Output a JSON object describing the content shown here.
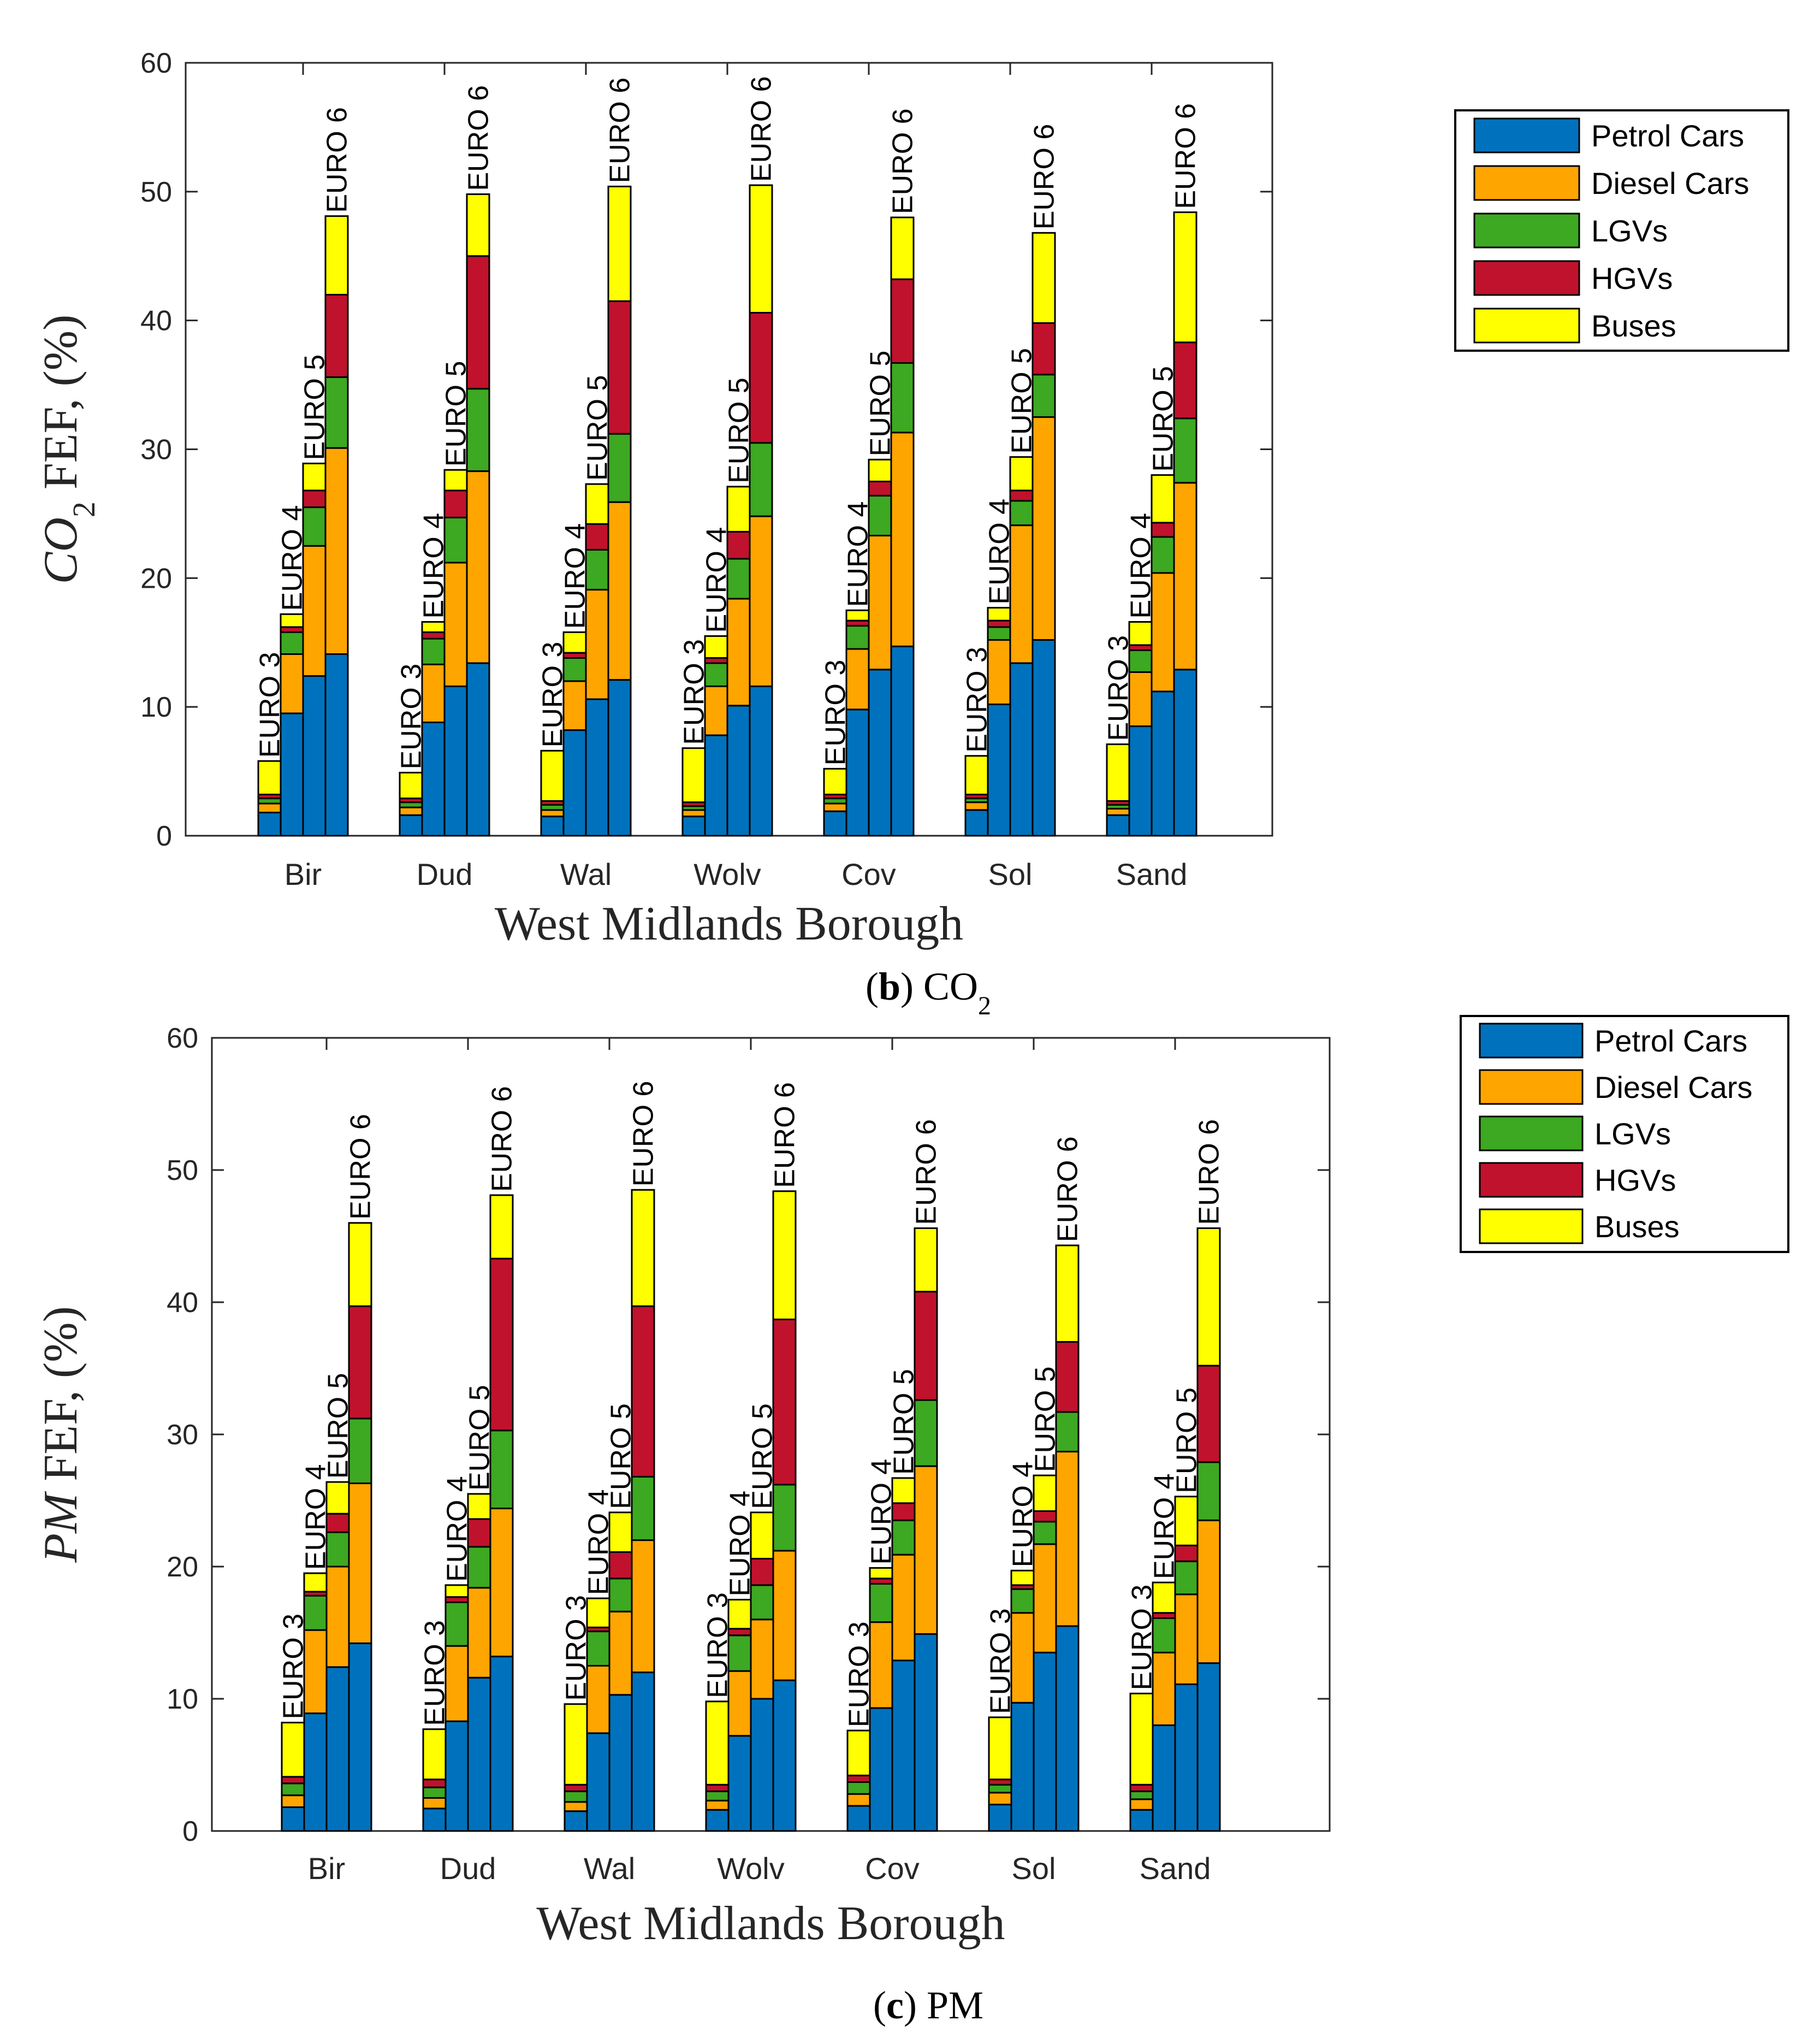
{
  "panels": [
    {
      "id": "co2",
      "ylabel_main": "CO",
      "ylabel_sub": "2",
      "ylabel_rest": " FEF, (%)",
      "xlabel": "West Midlands Borough",
      "caption_letter": "b",
      "caption_text": " CO",
      "caption_sub": "2"
    },
    {
      "id": "pm",
      "ylabel_main": "PM",
      "ylabel_sub": "",
      "ylabel_rest": " FEF, (%)",
      "xlabel": "West Midlands Borough",
      "caption_letter": "c",
      "caption_text": " PM",
      "caption_sub": ""
    }
  ],
  "chart_data": [
    {
      "type": "bar",
      "stacked": true,
      "title": "(b) CO2",
      "ylabel": "CO2 FEF, (%)",
      "xlabel": "West Midlands Borough",
      "ylim": [
        0,
        60
      ],
      "yticks": [
        0,
        10,
        20,
        30,
        40,
        50,
        60
      ],
      "categories": [
        "Bir",
        "Dud",
        "Wal",
        "Wolv",
        "Cov",
        "Sol",
        "Sand"
      ],
      "standards": [
        "EURO 3",
        "EURO 4",
        "EURO 5",
        "EURO 6"
      ],
      "legend": {
        "position": "outside right, top",
        "entries": [
          "Petrol Cars",
          "Diesel Cars",
          "LGVs",
          "HGVs",
          "Buses"
        ]
      },
      "series": [
        {
          "name": "Petrol Cars",
          "color": "#0072BD",
          "values": [
            [
              1.8,
              9.5,
              12.4,
              14.1
            ],
            [
              1.6,
              8.8,
              11.6,
              13.4
            ],
            [
              1.5,
              8.2,
              10.6,
              12.1
            ],
            [
              1.5,
              7.8,
              10.1,
              11.6
            ],
            [
              1.9,
              9.8,
              12.9,
              14.7
            ],
            [
              2.0,
              10.2,
              13.4,
              15.2
            ],
            [
              1.6,
              8.5,
              11.2,
              12.9
            ]
          ]
        },
        {
          "name": "Diesel Cars",
          "color": "#FFA500",
          "values": [
            [
              0.7,
              4.6,
              10.1,
              16.0
            ],
            [
              0.6,
              4.5,
              9.6,
              14.9
            ],
            [
              0.5,
              3.8,
              8.5,
              13.8
            ],
            [
              0.5,
              3.8,
              8.3,
              13.2
            ],
            [
              0.6,
              4.7,
              10.4,
              16.6
            ],
            [
              0.6,
              5.0,
              10.7,
              17.3
            ],
            [
              0.5,
              4.2,
              9.2,
              14.5
            ]
          ]
        },
        {
          "name": "LGVs",
          "color": "#3DA822",
          "values": [
            [
              0.4,
              1.7,
              3.0,
              5.5
            ],
            [
              0.4,
              2.0,
              3.5,
              6.4
            ],
            [
              0.4,
              1.8,
              3.1,
              5.3
            ],
            [
              0.3,
              1.8,
              3.1,
              5.7
            ],
            [
              0.4,
              1.8,
              3.1,
              5.4
            ],
            [
              0.3,
              1.0,
              1.9,
              3.3
            ],
            [
              0.3,
              1.7,
              2.8,
              5.0
            ]
          ]
        },
        {
          "name": "HGVs",
          "color": "#C0122C",
          "values": [
            [
              0.3,
              0.4,
              1.3,
              6.4
            ],
            [
              0.3,
              0.5,
              2.1,
              10.3
            ],
            [
              0.3,
              0.4,
              2.0,
              10.3
            ],
            [
              0.3,
              0.4,
              2.1,
              10.1
            ],
            [
              0.3,
              0.4,
              1.1,
              6.5
            ],
            [
              0.3,
              0.5,
              0.8,
              4.0
            ],
            [
              0.3,
              0.4,
              1.1,
              5.9
            ]
          ]
        },
        {
          "name": "Buses",
          "color": "#FFFF00",
          "values": [
            [
              2.6,
              1.0,
              2.1,
              6.1
            ],
            [
              2.0,
              0.8,
              1.6,
              4.8
            ],
            [
              3.9,
              1.6,
              3.1,
              8.9
            ],
            [
              4.2,
              1.7,
              3.5,
              9.9
            ],
            [
              2.0,
              0.8,
              1.7,
              4.8
            ],
            [
              3.0,
              1.0,
              2.6,
              7.0
            ],
            [
              4.4,
              1.8,
              3.7,
              10.1
            ]
          ]
        }
      ]
    },
    {
      "type": "bar",
      "stacked": true,
      "title": "(c) PM",
      "ylabel": "PM FEF, (%)",
      "xlabel": "West Midlands Borough",
      "ylim": [
        0,
        60
      ],
      "yticks": [
        0,
        10,
        20,
        30,
        40,
        50,
        60
      ],
      "categories": [
        "Bir",
        "Dud",
        "Wal",
        "Wolv",
        "Cov",
        "Sol",
        "Sand"
      ],
      "standards": [
        "EURO 3",
        "EURO 4",
        "EURO 5",
        "EURO 6"
      ],
      "legend": {
        "position": "outside right, top",
        "entries": [
          "Petrol Cars",
          "Diesel Cars",
          "LGVs",
          "HGVs",
          "Buses"
        ]
      },
      "series": [
        {
          "name": "Petrol Cars",
          "color": "#0072BD",
          "values": [
            [
              1.8,
              8.9,
              12.4,
              14.2
            ],
            [
              1.7,
              8.3,
              11.6,
              13.2
            ],
            [
              1.5,
              7.4,
              10.3,
              12.0
            ],
            [
              1.6,
              7.2,
              10.0,
              11.4
            ],
            [
              1.9,
              9.3,
              12.9,
              14.9
            ],
            [
              2.0,
              9.7,
              13.5,
              15.5
            ],
            [
              1.6,
              8.0,
              11.1,
              12.7
            ]
          ]
        },
        {
          "name": "Diesel Cars",
          "color": "#FFA500",
          "values": [
            [
              0.9,
              6.3,
              7.6,
              12.1
            ],
            [
              0.8,
              5.7,
              6.8,
              11.2
            ],
            [
              0.7,
              5.1,
              6.3,
              10.0
            ],
            [
              0.7,
              4.9,
              6.0,
              9.8
            ],
            [
              0.9,
              6.5,
              8.0,
              12.7
            ],
            [
              0.9,
              6.8,
              8.2,
              13.2
            ],
            [
              0.8,
              5.5,
              6.8,
              10.8
            ]
          ]
        },
        {
          "name": "LGVs",
          "color": "#3DA822",
          "values": [
            [
              0.9,
              2.6,
              2.6,
              4.9
            ],
            [
              0.8,
              3.3,
              3.1,
              5.9
            ],
            [
              0.8,
              2.6,
              2.5,
              4.8
            ],
            [
              0.7,
              2.7,
              2.6,
              5.0
            ],
            [
              0.9,
              2.9,
              2.6,
              5.0
            ],
            [
              0.6,
              1.8,
              1.7,
              3.0
            ],
            [
              0.6,
              2.6,
              2.5,
              4.4
            ]
          ]
        },
        {
          "name": "HGVs",
          "color": "#C0122C",
          "values": [
            [
              0.5,
              0.3,
              1.4,
              8.5
            ],
            [
              0.6,
              0.4,
              2.1,
              13.0
            ],
            [
              0.5,
              0.3,
              2.0,
              12.9
            ],
            [
              0.5,
              0.5,
              2.0,
              12.5
            ],
            [
              0.5,
              0.4,
              1.3,
              8.2
            ],
            [
              0.4,
              0.3,
              0.8,
              5.3
            ],
            [
              0.5,
              0.4,
              1.2,
              7.3
            ]
          ]
        },
        {
          "name": "Buses",
          "color": "#FFFF00",
          "values": [
            [
              4.1,
              1.4,
              2.4,
              6.3
            ],
            [
              3.8,
              0.9,
              1.9,
              4.8
            ],
            [
              6.1,
              2.2,
              3.0,
              8.8
            ],
            [
              6.3,
              2.2,
              3.5,
              9.7
            ],
            [
              3.4,
              0.8,
              1.9,
              4.8
            ],
            [
              4.7,
              1.1,
              2.7,
              7.3
            ],
            [
              6.9,
              2.3,
              3.7,
              10.4
            ]
          ]
        }
      ]
    }
  ]
}
